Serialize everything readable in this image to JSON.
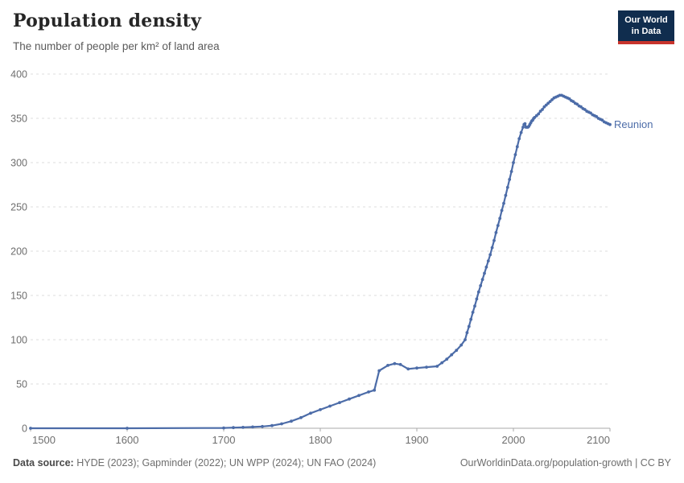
{
  "header": {
    "title": "Population density",
    "subtitle": "The number of people per km² of land area",
    "logo": {
      "line1": "Our World",
      "line2": "in Data"
    }
  },
  "colors": {
    "series_line": "#4C6CA8",
    "logo_background": "#102D4E",
    "logo_red_bar": "#C8342C",
    "gridline": "#dcdcdc",
    "axis_line": "#a8a8a8",
    "tick_label": "#6e6e6e"
  },
  "chart_data": {
    "type": "line",
    "title": "Population density",
    "subtitle": "The number of people per km² of land area",
    "xlabel": "",
    "ylabel": "",
    "entity_label": "Reunion",
    "xlim": [
      1500,
      2100
    ],
    "ylim": [
      0,
      400
    ],
    "x_ticks": [
      1500,
      1600,
      1700,
      1800,
      1900,
      2000,
      2100
    ],
    "y_ticks": [
      0,
      50,
      100,
      150,
      200,
      250,
      300,
      350,
      400
    ],
    "grid": "horizontal-dashed",
    "legend_position": "end-of-line-label",
    "series": [
      {
        "name": "Reunion",
        "color": "#4C6CA8",
        "points": [
          [
            1500,
            0
          ],
          [
            1600,
            0
          ],
          [
            1700,
            0.4
          ],
          [
            1710,
            0.7
          ],
          [
            1720,
            1
          ],
          [
            1730,
            1.5
          ],
          [
            1740,
            2
          ],
          [
            1750,
            3
          ],
          [
            1760,
            5
          ],
          [
            1770,
            8
          ],
          [
            1780,
            12
          ],
          [
            1790,
            17
          ],
          [
            1800,
            21
          ],
          [
            1810,
            25
          ],
          [
            1820,
            29
          ],
          [
            1830,
            33
          ],
          [
            1840,
            37
          ],
          [
            1850,
            41
          ],
          [
            1856,
            43
          ],
          [
            1861,
            65
          ],
          [
            1870,
            71
          ],
          [
            1877,
            73
          ],
          [
            1883,
            72
          ],
          [
            1891,
            67
          ],
          [
            1900,
            68
          ],
          [
            1910,
            69
          ],
          [
            1921,
            70
          ],
          [
            1926,
            74
          ],
          [
            1931,
            78
          ],
          [
            1936,
            83
          ],
          [
            1941,
            88
          ],
          [
            1946,
            94
          ],
          [
            1950,
            100
          ],
          [
            1952,
            108
          ],
          [
            1954,
            115
          ],
          [
            1956,
            123
          ],
          [
            1958,
            131
          ],
          [
            1960,
            138
          ],
          [
            1962,
            146
          ],
          [
            1964,
            154
          ],
          [
            1966,
            161
          ],
          [
            1968,
            168
          ],
          [
            1970,
            175
          ],
          [
            1972,
            182
          ],
          [
            1974,
            189
          ],
          [
            1976,
            196
          ],
          [
            1978,
            204
          ],
          [
            1980,
            212
          ],
          [
            1982,
            221
          ],
          [
            1984,
            229
          ],
          [
            1986,
            237
          ],
          [
            1988,
            246
          ],
          [
            1990,
            254
          ],
          [
            1992,
            263
          ],
          [
            1994,
            272
          ],
          [
            1996,
            281
          ],
          [
            1998,
            290
          ],
          [
            2000,
            300
          ],
          [
            2002,
            309
          ],
          [
            2004,
            318
          ],
          [
            2006,
            327
          ],
          [
            2008,
            334
          ],
          [
            2010,
            340
          ],
          [
            2011,
            343
          ],
          [
            2012,
            344
          ],
          [
            2013,
            340
          ],
          [
            2014,
            340
          ],
          [
            2015,
            340
          ],
          [
            2016,
            341
          ],
          [
            2017,
            343
          ],
          [
            2018,
            345
          ],
          [
            2019,
            347
          ],
          [
            2020,
            348
          ],
          [
            2021,
            350
          ],
          [
            2022,
            351
          ],
          [
            2024,
            353
          ],
          [
            2026,
            355
          ],
          [
            2028,
            358
          ],
          [
            2030,
            360
          ],
          [
            2032,
            363
          ],
          [
            2034,
            365
          ],
          [
            2036,
            367
          ],
          [
            2038,
            369
          ],
          [
            2040,
            371
          ],
          [
            2042,
            373
          ],
          [
            2044,
            374
          ],
          [
            2046,
            375
          ],
          [
            2048,
            376
          ],
          [
            2050,
            376
          ],
          [
            2052,
            375
          ],
          [
            2054,
            374
          ],
          [
            2056,
            373
          ],
          [
            2058,
            372
          ],
          [
            2060,
            370
          ],
          [
            2062,
            369
          ],
          [
            2064,
            367
          ],
          [
            2066,
            366
          ],
          [
            2068,
            364
          ],
          [
            2070,
            363
          ],
          [
            2072,
            361
          ],
          [
            2074,
            360
          ],
          [
            2076,
            358
          ],
          [
            2078,
            357
          ],
          [
            2080,
            356
          ],
          [
            2082,
            354
          ],
          [
            2084,
            353
          ],
          [
            2086,
            352
          ],
          [
            2088,
            350
          ],
          [
            2090,
            349
          ],
          [
            2092,
            348
          ],
          [
            2094,
            346
          ],
          [
            2096,
            345
          ],
          [
            2098,
            344
          ],
          [
            2100,
            343
          ]
        ]
      }
    ]
  },
  "footer": {
    "datasource_label": "Data source:",
    "datasource_text": " HYDE (2023); Gapminder (2022); UN WPP (2024); UN FAO (2024)",
    "link_text": "OurWorldinData.org/population-growth | CC BY"
  }
}
